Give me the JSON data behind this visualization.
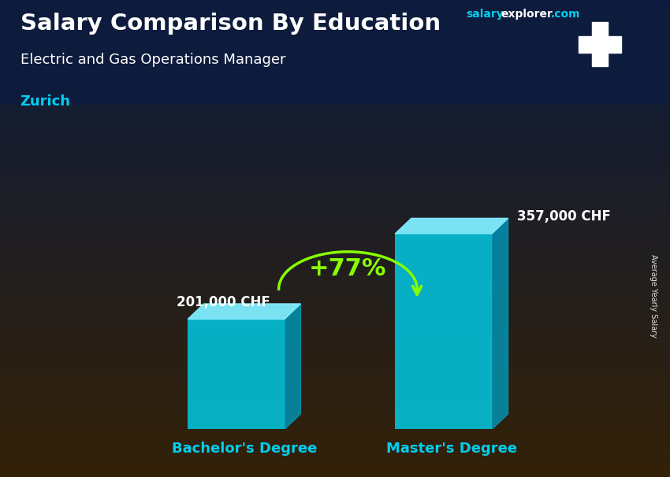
{
  "title_main": "Salary Comparison By Education",
  "title_sub": "Electric and Gas Operations Manager",
  "city": "Zurich",
  "ylabel": "Average Yearly Salary",
  "website_salary": "salary",
  "website_explorer": "explorer",
  "website_com": ".com",
  "categories": [
    "Bachelor's Degree",
    "Master's Degree"
  ],
  "values": [
    201000,
    357000
  ],
  "value_labels": [
    "201,000 CHF",
    "357,000 CHF"
  ],
  "pct_change": "+77%",
  "bar_color_face": "#00D4F0",
  "bar_color_top": "#80EEFF",
  "bar_color_side": "#0099BB",
  "bar_alpha": 0.8,
  "arrow_color": "#88FF00",
  "pct_color": "#88FF00",
  "value_color": "#ffffff",
  "city_color": "#00CFEF",
  "cat_label_color": "#00CFEF",
  "title_color": "#ffffff",
  "website_color1": "#00CFEF",
  "website_color2": "#ffffff",
  "flag_bg": "#e63946",
  "figsize": [
    8.5,
    6.06
  ],
  "dpi": 100
}
